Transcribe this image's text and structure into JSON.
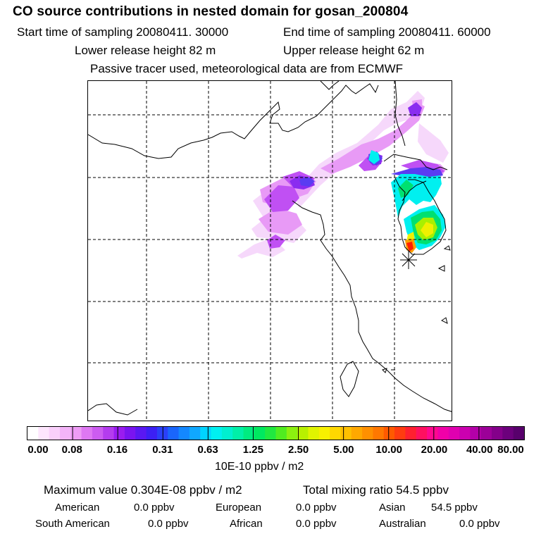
{
  "header": {
    "title": "CO  source contributions in nested domain for gosan_200804",
    "start_time": "Start time of sampling 20080411. 30000",
    "end_time": "End time of sampling 20080411. 60000",
    "lower_release": "Lower release height   82 m",
    "upper_release": "Upper release height   62 m",
    "tracer_note": "Passive tracer used, meteorological data are from ECMWF"
  },
  "map": {
    "receptor_marker": "gosan-station",
    "plume_colors": [
      "#f6d8fb",
      "#e89af6",
      "#c050f3",
      "#8a2cf0",
      "#5a3cf2",
      "#1a8cff",
      "#00f0f0",
      "#00e070",
      "#a8f000",
      "#f0f000",
      "#ffa000",
      "#ff2000"
    ]
  },
  "colorbar": {
    "ticks": [
      "0.00",
      "0.08",
      "0.16",
      "0.31",
      "0.63",
      "1.25",
      "2.50",
      "5.00",
      "10.00",
      "20.00",
      "40.00",
      "80.00"
    ],
    "colors": [
      "#ffffff",
      "#fde6fd",
      "#f9d0fb",
      "#f3b4f8",
      "#ee9cf5",
      "#de78f2",
      "#cc5cf0",
      "#b43cee",
      "#9a1cf0",
      "#7a14f0",
      "#5a18f2",
      "#3c20f4",
      "#2a40f8",
      "#1a66fc",
      "#1488ff",
      "#10a8ff",
      "#00d4ff",
      "#00f0f0",
      "#00f0d0",
      "#00f0a8",
      "#00ec80",
      "#00e860",
      "#20e840",
      "#50ec20",
      "#8cf010",
      "#b8f000",
      "#e0f400",
      "#f8f000",
      "#ffd800",
      "#ffc000",
      "#ffa800",
      "#ff9000",
      "#ff7800",
      "#ff5a00",
      "#ff3c10",
      "#ff2030",
      "#ff1060",
      "#ff0890",
      "#f000a8",
      "#e000b0",
      "#cc00b0",
      "#b400a8",
      "#9c0098",
      "#84008a",
      "#6c007c",
      "#58006c"
    ],
    "unit": "10E-10 ppbv / m2"
  },
  "summary": {
    "maximum": "Maximum value  0.304E-08 ppbv / m2",
    "total": "Total mixing ratio       54.5 ppbv",
    "contributions": [
      {
        "region": "American",
        "value": "0.0 ppbv"
      },
      {
        "region": "European",
        "value": "0.0 ppbv"
      },
      {
        "region": "Asian",
        "value": "54.5 ppbv"
      },
      {
        "region": "South American",
        "value": "0.0 ppbv"
      },
      {
        "region": "African",
        "value": "0.0 ppbv"
      },
      {
        "region": "Australian",
        "value": "0.0 ppbv"
      }
    ]
  }
}
